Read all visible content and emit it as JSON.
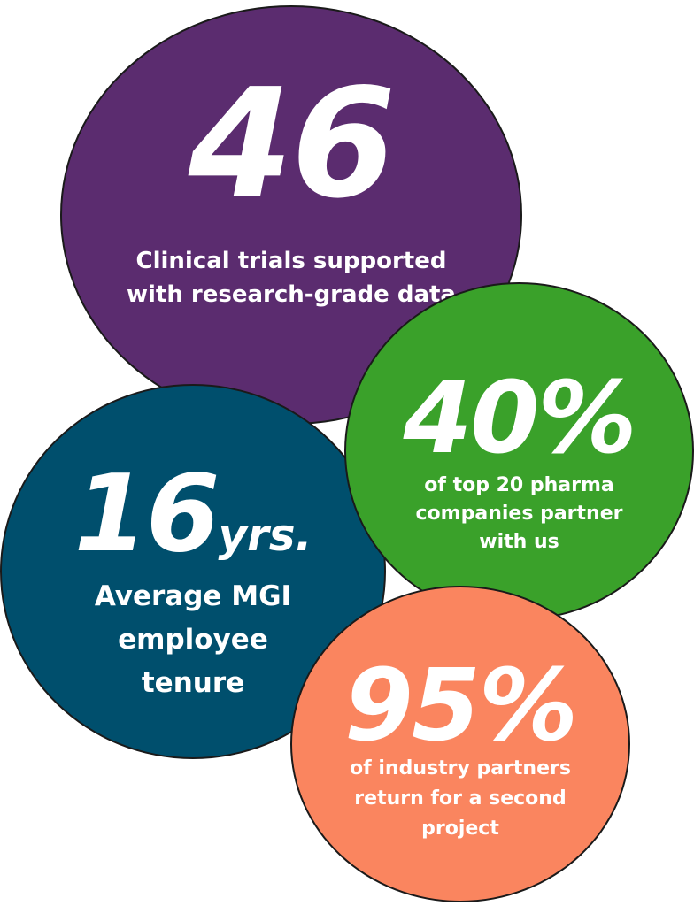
{
  "stats": [
    {
      "number": "46",
      "unit": "",
      "caption": "Clinical trials supported with research-grade data",
      "color": "#5b2c6f"
    },
    {
      "number": "16",
      "unit": "yrs.",
      "caption": "Average MGI employee tenure",
      "color": "#004f6d"
    },
    {
      "number": "40%",
      "unit": "",
      "caption": "of top 20 pharma companies partner with us",
      "color": "#3aa12a"
    },
    {
      "number": "95%",
      "unit": "",
      "caption": "of industry partners return for a second project",
      "color": "#fa855f"
    }
  ]
}
